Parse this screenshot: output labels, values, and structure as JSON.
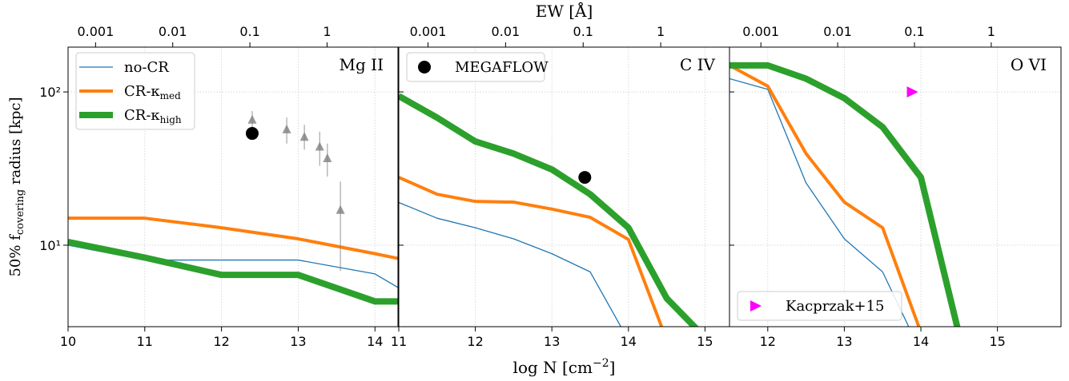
{
  "chart_data": [
    {
      "type": "line",
      "title": "Mg II",
      "ylabel": {
        "text": "50% f",
        "sub": "covering",
        "after": " radius [kpc]"
      },
      "x": [
        10,
        11,
        12,
        13,
        14,
        14.3
      ],
      "series": [
        {
          "name": "no-CR",
          "color": "#1f77b4",
          "width": 1.3,
          "values": [
            10,
            8,
            8,
            8,
            6.5,
            5.3
          ]
        },
        {
          "name": "CR-κ",
          "sub": "med",
          "color": "#ff7f0e",
          "width": 4,
          "values": [
            15,
            15,
            13,
            11,
            8.8,
            8.2
          ]
        },
        {
          "name": "CR-κ",
          "sub": "high",
          "color": "#2ca02c",
          "width": 8,
          "values": [
            10.5,
            8.3,
            6.4,
            6.4,
            4.3,
            4.3
          ]
        }
      ],
      "points": [
        {
          "color": "#808080",
          "marker": "triangle-up",
          "x": [
            12.4,
            12.85,
            13.08,
            13.28,
            13.38,
            13.55
          ],
          "values": [
            66,
            57,
            51,
            44,
            37,
            17
          ],
          "ylow": [
            58,
            46,
            42,
            33,
            28,
            6.8
          ],
          "yhigh": [
            75,
            68,
            61,
            55,
            46,
            26
          ]
        },
        {
          "color": "#000000",
          "marker": "circle",
          "x": [
            12.4
          ],
          "values": [
            53.6
          ]
        }
      ],
      "xlim": [
        10,
        14.3
      ],
      "xticks": [
        10,
        11,
        12,
        13,
        14
      ],
      "ylim": [
        2.94,
        196
      ],
      "yscale": "log",
      "yticks": [
        {
          "value": 10,
          "label": "10¹"
        },
        {
          "value": 100,
          "label": "10²"
        }
      ],
      "x2lim": [
        0.00044,
        8.3
      ],
      "x2scale": "log",
      "x2ticks": [
        0.001,
        0.01,
        0.1,
        1
      ],
      "grid": true,
      "legend": "upper left"
    },
    {
      "type": "line",
      "title": "C IV",
      "xlabel": {
        "text": "log N [cm",
        "sup": "−2",
        "after": "]"
      },
      "x2label": "EW [Å]",
      "x": [
        11,
        11.5,
        12,
        12.5,
        13,
        13.5,
        14,
        14.5,
        15
      ],
      "series": [
        {
          "color": "#1f77b4",
          "width": 1.3,
          "values": [
            19,
            15,
            13,
            11,
            8.8,
            6.7,
            2.4,
            null,
            null
          ]
        },
        {
          "color": "#ff7f0e",
          "width": 4,
          "values": [
            27.7,
            21.5,
            19.3,
            19.1,
            17.2,
            15.2,
            10.9,
            2.4,
            null
          ]
        },
        {
          "color": "#2ca02c",
          "width": 8,
          "values": [
            94,
            68,
            47.5,
            39.6,
            31.2,
            21.5,
            13,
            4.5,
            2.5
          ]
        }
      ],
      "points": [
        {
          "name": "MEGAFLOW",
          "color": "#000000",
          "marker": "circle",
          "x": [
            13.43
          ],
          "values": [
            27.7
          ]
        }
      ],
      "xlim": [
        11,
        15.32
      ],
      "xticks": [
        11,
        12,
        13,
        14,
        15
      ],
      "ylim": [
        2.94,
        196
      ],
      "yscale": "log",
      "x2lim": [
        0.00042,
        7.7
      ],
      "x2scale": "log",
      "x2ticks": [
        0.001,
        0.01,
        0.1,
        1
      ],
      "grid": true,
      "legend": "upper left"
    },
    {
      "type": "line",
      "title": "O VI",
      "x": [
        11.5,
        12,
        12.5,
        13,
        13.5,
        14,
        14.5
      ],
      "series": [
        {
          "color": "#1f77b4",
          "width": 1.3,
          "values": [
            122,
            104,
            25.5,
            11,
            6.7,
            2,
            null
          ]
        },
        {
          "color": "#ff7f0e",
          "width": 4,
          "values": [
            149,
            109,
            39.6,
            19.1,
            13,
            2.7,
            null
          ]
        },
        {
          "color": "#2ca02c",
          "width": 8,
          "values": [
            149,
            149,
            122,
            91,
            59,
            27.7,
            2.6
          ]
        }
      ],
      "points": [
        {
          "name": "Kacprzak+15",
          "color": "#ff00ff",
          "marker": "triangle-right",
          "x": [
            13.88
          ],
          "values": [
            100
          ]
        }
      ],
      "xlim": [
        11.5,
        15.83
      ],
      "xticks": [
        12,
        13,
        14,
        15
      ],
      "ylim": [
        2.94,
        196
      ],
      "yscale": "log",
      "x2lim": [
        0.00039,
        8.1
      ],
      "x2scale": "log",
      "x2ticks": [
        0.001,
        0.01,
        0.1,
        1
      ],
      "grid": true,
      "legend": "lower left"
    }
  ]
}
